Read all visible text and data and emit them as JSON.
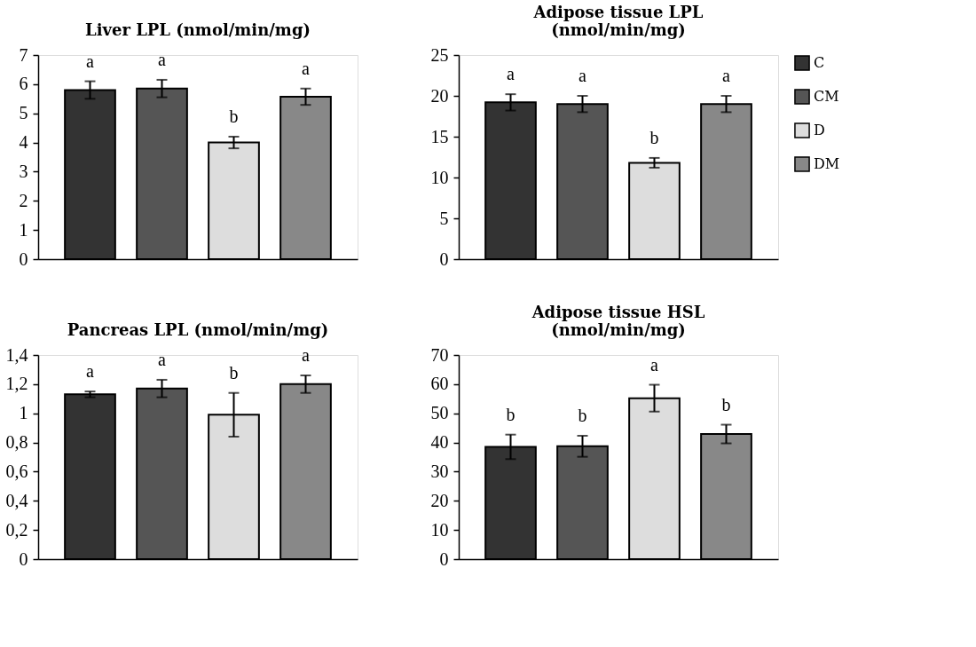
{
  "chart_data": [
    {
      "type": "bar",
      "title": "Liver LPL (nmol/min/mg)",
      "categories": [
        null
      ],
      "tick_labels": "y",
      "ylim": [
        0,
        7
      ],
      "yticks": [
        0,
        1,
        2,
        3,
        4,
        5,
        6,
        7
      ],
      "annotations": [
        "a",
        "a",
        "b",
        "a"
      ],
      "series": [
        {
          "color": "#333333",
          "values": [
            5.8
          ],
          "errors": [
            0.3
          ]
        },
        {
          "color": "#555555",
          "values": [
            5.85
          ],
          "errors": [
            0.3
          ]
        },
        {
          "color": "#dddddd",
          "values": [
            4.0
          ],
          "errors": [
            0.2
          ]
        },
        {
          "color": "#888888",
          "values": [
            5.57
          ],
          "errors": [
            0.28
          ]
        }
      ]
    },
    {
      "type": "bar",
      "title": "Adipose tissue LPL (nmol/min/mg)",
      "categories": [
        null
      ],
      "legend": "right",
      "tick_labels": "y",
      "ylim": [
        0,
        25
      ],
      "yticks": [
        0,
        5,
        10,
        15,
        20,
        25
      ],
      "annotations": [
        "a",
        "a",
        "b",
        "a"
      ],
      "series": [
        {
          "name": "C",
          "color": "#333333",
          "values": [
            19.2
          ],
          "errors": [
            1.0
          ]
        },
        {
          "name": "CM",
          "color": "#555555",
          "values": [
            19.0
          ],
          "errors": [
            1.0
          ]
        },
        {
          "name": "D",
          "color": "#dddddd",
          "values": [
            11.8
          ],
          "errors": [
            0.6
          ]
        },
        {
          "name": "DM",
          "color": "#888888",
          "values": [
            19.0
          ],
          "errors": [
            1.0
          ]
        }
      ]
    },
    {
      "type": "bar",
      "title": "Pancreas LPL (nmol/min/mg)",
      "categories": [
        null
      ],
      "tick_labels": "y",
      "ylim": [
        0,
        1.4
      ],
      "yticks": [
        0,
        {
          "value": 0.2,
          "label": "0,2"
        },
        {
          "value": 0.4,
          "label": "0,4"
        },
        {
          "value": 0.6,
          "label": "0,6"
        },
        {
          "value": 0.8,
          "label": "0,8"
        },
        1,
        {
          "value": 1.2,
          "label": "1,2"
        },
        {
          "value": 1.4,
          "label": "1,4"
        }
      ],
      "annotations": [
        "a",
        "a",
        "b",
        "a"
      ],
      "series": [
        {
          "color": "#333333",
          "values": [
            1.13
          ],
          "errors": [
            0.02
          ]
        },
        {
          "color": "#555555",
          "values": [
            1.17
          ],
          "errors": [
            0.06
          ]
        },
        {
          "color": "#dddddd",
          "values": [
            0.99
          ],
          "errors": [
            0.15
          ]
        },
        {
          "color": "#888888",
          "values": [
            1.2
          ],
          "errors": [
            0.06
          ]
        }
      ]
    },
    {
      "type": "bar",
      "title": "Adipose tissue HSL (nmol/min/mg)",
      "categories": [
        null
      ],
      "tick_labels": "y",
      "ylim": [
        0,
        70
      ],
      "yticks": [
        0,
        10,
        20,
        30,
        40,
        50,
        60,
        70
      ],
      "annotations": [
        "b",
        "b",
        "a",
        "b"
      ],
      "series": [
        {
          "color": "#333333",
          "values": [
            38.5
          ],
          "errors": [
            4.2
          ]
        },
        {
          "color": "#555555",
          "values": [
            38.7
          ],
          "errors": [
            3.6
          ]
        },
        {
          "color": "#dddddd",
          "values": [
            55.2
          ],
          "errors": [
            4.6
          ]
        },
        {
          "color": "#888888",
          "values": [
            42.9
          ],
          "errors": [
            3.2
          ]
        }
      ]
    }
  ]
}
